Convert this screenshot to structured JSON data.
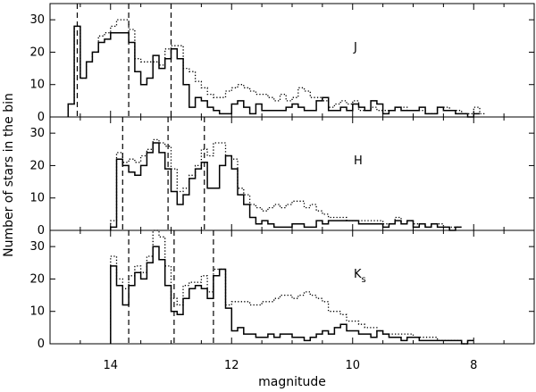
{
  "chart_data": {
    "type": "histogram",
    "xlabel": "magnitude",
    "ylabel": "Number of stars in the bin",
    "xlim": [
      15.0,
      7.0
    ],
    "x_ticks": [
      "14",
      "12",
      "10",
      "8"
    ],
    "bin_width": 0.1,
    "colors": {
      "line": "#000000",
      "background": "#ffffff"
    },
    "panels": [
      {
        "label": "J",
        "label_subscript": "",
        "ylim": [
          0,
          35
        ],
        "y_ticks": [
          "0",
          "10",
          "20",
          "30"
        ],
        "vlines": [
          14.55,
          13.7,
          13.0
        ],
        "series": [
          {
            "style": "solid",
            "x_start": 14.7,
            "values": [
              4,
              28,
              12,
              17,
              20,
              23,
              24,
              26,
              26,
              26,
              23,
              14,
              10,
              12,
              19,
              15,
              18,
              21,
              18,
              10,
              3,
              6,
              5,
              3,
              2,
              1,
              1,
              4,
              5,
              3,
              1,
              4,
              2,
              2,
              2,
              2,
              3,
              4,
              3,
              2,
              2,
              5,
              6,
              2,
              2,
              3,
              2,
              4,
              3,
              2,
              5,
              4,
              1,
              2,
              3,
              2,
              2,
              2,
              3,
              1,
              1,
              3,
              2,
              2,
              1,
              1,
              0,
              1
            ]
          },
          {
            "style": "dotted",
            "x_start": 14.7,
            "values": [
              4,
              28,
              12,
              17,
              20,
              25,
              26,
              28,
              30,
              30,
              27,
              18,
              17,
              17,
              17,
              16,
              21,
              22,
              22,
              15,
              14,
              11,
              9,
              7,
              6,
              6,
              8,
              9,
              10,
              9,
              8,
              7,
              7,
              6,
              5,
              7,
              5,
              6,
              9,
              8,
              6,
              6,
              5,
              3,
              4,
              5,
              4,
              5,
              2,
              2,
              3,
              2,
              2,
              2,
              3,
              3,
              2,
              2,
              2,
              1,
              1,
              3,
              3,
              2,
              2,
              1,
              1,
              3,
              1
            ]
          }
        ]
      },
      {
        "label": "H",
        "label_subscript": "",
        "ylim": [
          0,
          35
        ],
        "y_ticks": [
          "0",
          "10",
          "20",
          "30"
        ],
        "vlines": [
          13.8,
          13.05,
          12.45
        ],
        "series": [
          {
            "style": "solid",
            "x_start": 14.0,
            "values": [
              1,
              22,
              20,
              18,
              17,
              20,
              24,
              27,
              24,
              19,
              12,
              8,
              11,
              16,
              19,
              21,
              13,
              13,
              20,
              23,
              19,
              11,
              8,
              4,
              2,
              3,
              2,
              1,
              1,
              1,
              2,
              2,
              1,
              1,
              3,
              2,
              3,
              3,
              3,
              3,
              3,
              2,
              2,
              2,
              2,
              1,
              2,
              3,
              2,
              3,
              1,
              2,
              1,
              2,
              1,
              1,
              0,
              1
            ]
          },
          {
            "style": "dotted",
            "x_start": 14.0,
            "values": [
              3,
              24,
              21,
              22,
              21,
              23,
              25,
              28,
              27,
              26,
              19,
              12,
              13,
              17,
              20,
              25,
              23,
              27,
              27,
              23,
              22,
              13,
              11,
              8,
              7,
              6,
              7,
              8,
              7,
              8,
              9,
              9,
              7,
              8,
              6,
              5,
              4,
              4,
              4,
              3,
              3,
              3,
              3,
              3,
              3,
              2,
              2,
              4,
              2,
              3,
              2,
              2,
              1,
              2,
              2,
              1,
              1,
              1
            ]
          }
        ]
      },
      {
        "label": "K",
        "label_subscript": "s",
        "ylim": [
          0,
          35
        ],
        "y_ticks": [
          "0",
          "10",
          "20",
          "30"
        ],
        "vlines": [
          13.7,
          12.95,
          12.3
        ],
        "series": [
          {
            "style": "solid",
            "x_start": 14.0,
            "values": [
              24,
              18,
              12,
              18,
              22,
              20,
              25,
              30,
              26,
              18,
              10,
              9,
              14,
              17,
              18,
              17,
              14,
              21,
              23,
              11,
              4,
              5,
              3,
              3,
              2,
              2,
              3,
              2,
              3,
              3,
              2,
              2,
              1,
              2,
              3,
              4,
              3,
              5,
              6,
              4,
              4,
              3,
              3,
              2,
              4,
              3,
              2,
              2,
              1,
              2,
              2,
              1,
              1,
              1,
              1,
              1,
              1,
              1,
              0,
              1
            ]
          },
          {
            "style": "dotted",
            "x_start": 14.0,
            "values": [
              27,
              20,
              17,
              21,
              24,
              22,
              27,
              35,
              33,
              24,
              14,
              12,
              18,
              19,
              19,
              21,
              16,
              23,
              23,
              12,
              13,
              13,
              13,
              12,
              12,
              13,
              13,
              14,
              15,
              15,
              14,
              15,
              16,
              15,
              14,
              13,
              10,
              10,
              9,
              7,
              7,
              6,
              5,
              5,
              4,
              3,
              3,
              3,
              3,
              3,
              2,
              2,
              2,
              2,
              1,
              1,
              1,
              1,
              0,
              1
            ]
          }
        ]
      }
    ]
  }
}
